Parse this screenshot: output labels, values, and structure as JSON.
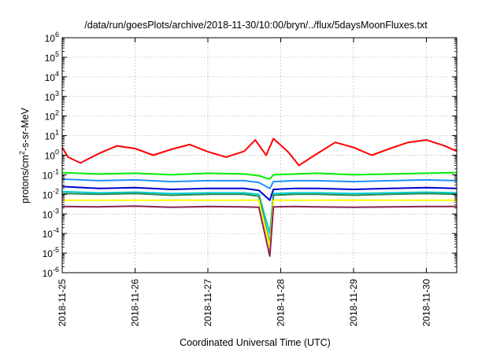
{
  "chart_data": {
    "type": "line",
    "title": "/data/run/goesPlots/archive/2018-11-30/10:00/bryn/../flux/5daysMoonFluxes.txt",
    "xlabel": "Coordinated Universal Time (UTC)",
    "ylabel": {
      "prefix": "protons/cm",
      "sup": "2",
      "suffix": "-s-sr-MeV"
    },
    "yscale": "log",
    "ylim_exp": [
      -6,
      6
    ],
    "ylim": [
      1e-06,
      1000000
    ],
    "xlim": [
      "2018-11-25",
      "2018-11-30T10:00"
    ],
    "xlim_days": [
      0,
      5.4167
    ],
    "grid": true,
    "legend": "none",
    "y_ticks_exp": [
      6,
      5,
      4,
      3,
      2,
      1,
      0,
      -1,
      -2,
      -3,
      -4,
      -5,
      -6
    ],
    "x_ticks": [
      {
        "label": "2018-11-25",
        "day": 0
      },
      {
        "label": "2018-11-26",
        "day": 1
      },
      {
        "label": "2018-11-27",
        "day": 2
      },
      {
        "label": "2018-11-28",
        "day": 3
      },
      {
        "label": "2018-11-29",
        "day": 4
      },
      {
        "label": "2018-11-30",
        "day": 5
      }
    ],
    "series": [
      {
        "color": "#ff0000",
        "x": [
          0,
          0.08,
          0.25,
          0.5,
          0.75,
          1,
          1.25,
          1.5,
          1.75,
          2,
          2.25,
          2.5,
          2.65,
          2.8,
          2.9,
          3.1,
          3.25,
          3.5,
          3.75,
          4,
          4.25,
          4.5,
          4.75,
          5,
          5.25,
          5.4167
        ],
        "y": [
          2.5,
          0.8,
          0.4,
          1.2,
          3,
          2.2,
          1,
          2,
          3.5,
          1.5,
          0.8,
          1.6,
          6,
          1,
          7,
          1.5,
          0.3,
          1.2,
          4.5,
          2.5,
          1,
          2.2,
          4.5,
          6,
          3,
          1.6
        ]
      },
      {
        "color": "#00ee00",
        "x": [
          0,
          0.5,
          1,
          1.5,
          2,
          2.5,
          2.7,
          2.85,
          2.9,
          3.2,
          3.5,
          4,
          4.5,
          5,
          5.4167
        ],
        "y": [
          0.13,
          0.11,
          0.12,
          0.1,
          0.12,
          0.11,
          0.09,
          0.06,
          0.1,
          0.11,
          0.12,
          0.1,
          0.11,
          0.12,
          0.13
        ]
      },
      {
        "color": "#1e90ff",
        "x": [
          0,
          0.5,
          1,
          1.5,
          2,
          2.5,
          2.7,
          2.85,
          2.9,
          3.2,
          3.5,
          4,
          4.5,
          5,
          5.4167
        ],
        "y": [
          0.06,
          0.05,
          0.055,
          0.045,
          0.05,
          0.05,
          0.04,
          0.02,
          0.045,
          0.05,
          0.05,
          0.045,
          0.05,
          0.055,
          0.05
        ]
      },
      {
        "color": "#0000cd",
        "x": [
          0,
          0.5,
          1,
          1.5,
          2,
          2.5,
          2.7,
          2.85,
          2.9,
          3.2,
          3.5,
          4,
          4.5,
          5,
          5.4167
        ],
        "y": [
          0.025,
          0.02,
          0.022,
          0.018,
          0.02,
          0.02,
          0.016,
          0.005,
          0.018,
          0.02,
          0.02,
          0.018,
          0.02,
          0.022,
          0.02
        ]
      },
      {
        "color": "#00ced1",
        "x": [
          0,
          0.5,
          1,
          1.5,
          2,
          2.5,
          2.7,
          2.85,
          2.9,
          3.2,
          3.5,
          4,
          4.5,
          5,
          5.4167
        ],
        "y": [
          0.014,
          0.012,
          0.013,
          0.011,
          0.012,
          0.012,
          0.01,
          0.0001,
          0.011,
          0.012,
          0.012,
          0.011,
          0.012,
          0.013,
          0.012
        ]
      },
      {
        "color": "#2e8b57",
        "x": [
          0,
          0.5,
          1,
          1.5,
          2,
          2.5,
          2.7,
          2.85,
          2.9,
          3.2,
          3.5,
          4,
          4.5,
          5,
          5.4167
        ],
        "y": [
          0.011,
          0.01,
          0.011,
          0.009,
          0.01,
          0.01,
          0.008,
          3e-05,
          0.009,
          0.01,
          0.01,
          0.009,
          0.01,
          0.011,
          0.01
        ]
      },
      {
        "color": "#ffff00",
        "x": [
          0,
          0.5,
          1,
          1.5,
          2,
          2.5,
          2.7,
          2.85,
          2.9,
          3.2,
          3.5,
          4,
          4.5,
          5,
          5.4167
        ],
        "y": [
          0.005,
          0.005,
          0.005,
          0.005,
          0.005,
          0.005,
          0.005,
          2e-05,
          0.005,
          0.005,
          0.005,
          0.005,
          0.005,
          0.005,
          0.005
        ]
      },
      {
        "color": "#8b2252",
        "x": [
          0,
          0.5,
          1,
          1.5,
          2,
          2.5,
          2.7,
          2.85,
          2.9,
          3.2,
          3.5,
          4,
          4.5,
          5,
          5.4167
        ],
        "y": [
          0.0024,
          0.0023,
          0.0025,
          0.0022,
          0.0024,
          0.0023,
          0.0022,
          7e-06,
          0.0023,
          0.0024,
          0.0023,
          0.0022,
          0.0023,
          0.0024,
          0.0024
        ]
      }
    ]
  }
}
